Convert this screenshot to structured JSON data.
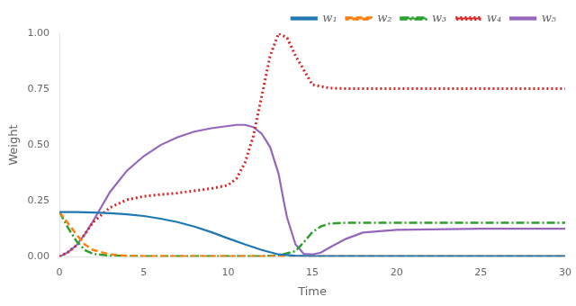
{
  "chart_data": {
    "type": "line",
    "xlabel": "Time",
    "ylabel": "Weight",
    "xlim": [
      0,
      30
    ],
    "ylim": [
      0,
      1.0
    ],
    "xticks": [
      0,
      5,
      10,
      15,
      20,
      25,
      30
    ],
    "yticks": [
      {
        "value": 0,
        "label": "0.00"
      },
      0.25,
      {
        "value": 0.5,
        "label": "0.50"
      },
      0.75,
      {
        "value": 1.0,
        "label": "1.00"
      }
    ],
    "grid": false,
    "legend": "upper right",
    "series": [
      {
        "name": "w₁",
        "color": "#1f77b4",
        "line_style": "solid",
        "x": [
          0,
          1,
          2,
          3,
          4,
          5,
          6,
          7,
          8,
          9,
          10,
          11,
          12,
          13,
          14,
          15,
          20,
          25,
          30
        ],
        "values": [
          0.2,
          0.2,
          0.198,
          0.195,
          0.19,
          0.182,
          0.17,
          0.155,
          0.135,
          0.11,
          0.082,
          0.055,
          0.03,
          0.01,
          0.004,
          0.002,
          0.002,
          0.002,
          0.002
        ]
      },
      {
        "name": "w₂",
        "color": "#ff7f0e",
        "line_style": "dashed",
        "x": [
          0,
          0.5,
          1,
          1.5,
          2,
          3,
          4,
          5,
          6,
          7,
          8,
          9,
          10,
          15,
          20,
          25,
          30
        ],
        "values": [
          0.2,
          0.15,
          0.1,
          0.055,
          0.03,
          0.01,
          0.004,
          0.002,
          0.002,
          0.002,
          0.002,
          0.002,
          0.002,
          0.002,
          0.002,
          0.002,
          0.002
        ]
      },
      {
        "name": "w₃",
        "color": "#2ca02c",
        "line_style": "dashdot",
        "x": [
          0,
          0.5,
          1,
          1.5,
          2,
          3,
          4,
          5,
          6,
          7,
          8,
          9,
          10,
          11,
          12,
          13,
          14,
          14.5,
          15,
          15.5,
          16,
          17,
          18,
          20,
          25,
          30
        ],
        "values": [
          0.2,
          0.13,
          0.07,
          0.03,
          0.012,
          0.005,
          0.003,
          0.002,
          0.002,
          0.002,
          0.002,
          0.002,
          0.002,
          0.002,
          0.002,
          0.005,
          0.025,
          0.065,
          0.11,
          0.135,
          0.148,
          0.152,
          0.152,
          0.152,
          0.152,
          0.152
        ]
      },
      {
        "name": "w₄",
        "color": "#d62728",
        "line_style": "dotted",
        "x": [
          0,
          0.5,
          1,
          1.5,
          2,
          3,
          4,
          5,
          6,
          7,
          8,
          9,
          10,
          10.5,
          11,
          11.5,
          12,
          12.5,
          13,
          13.5,
          14,
          15,
          16,
          17,
          18,
          20,
          25,
          30
        ],
        "values": [
          0.0,
          0.02,
          0.05,
          0.1,
          0.155,
          0.22,
          0.255,
          0.27,
          0.278,
          0.285,
          0.295,
          0.305,
          0.32,
          0.35,
          0.42,
          0.54,
          0.72,
          0.9,
          1.0,
          0.98,
          0.9,
          0.77,
          0.755,
          0.752,
          0.752,
          0.752,
          0.752,
          0.752
        ]
      },
      {
        "name": "w₅",
        "color": "#9467bd",
        "line_style": "solid",
        "x": [
          0,
          0.5,
          1,
          1.5,
          2,
          3,
          4,
          5,
          6,
          7,
          8,
          9,
          10,
          10.5,
          11,
          11.5,
          12,
          12.5,
          13,
          13.3,
          13.5,
          14,
          14.5,
          15,
          15.5,
          16,
          17,
          18,
          20,
          25,
          30
        ],
        "values": [
          0.0,
          0.02,
          0.05,
          0.1,
          0.16,
          0.29,
          0.385,
          0.45,
          0.5,
          0.535,
          0.56,
          0.575,
          0.585,
          0.59,
          0.59,
          0.58,
          0.55,
          0.49,
          0.37,
          0.25,
          0.175,
          0.055,
          0.012,
          0.01,
          0.018,
          0.04,
          0.08,
          0.108,
          0.12,
          0.125,
          0.125
        ]
      }
    ]
  }
}
